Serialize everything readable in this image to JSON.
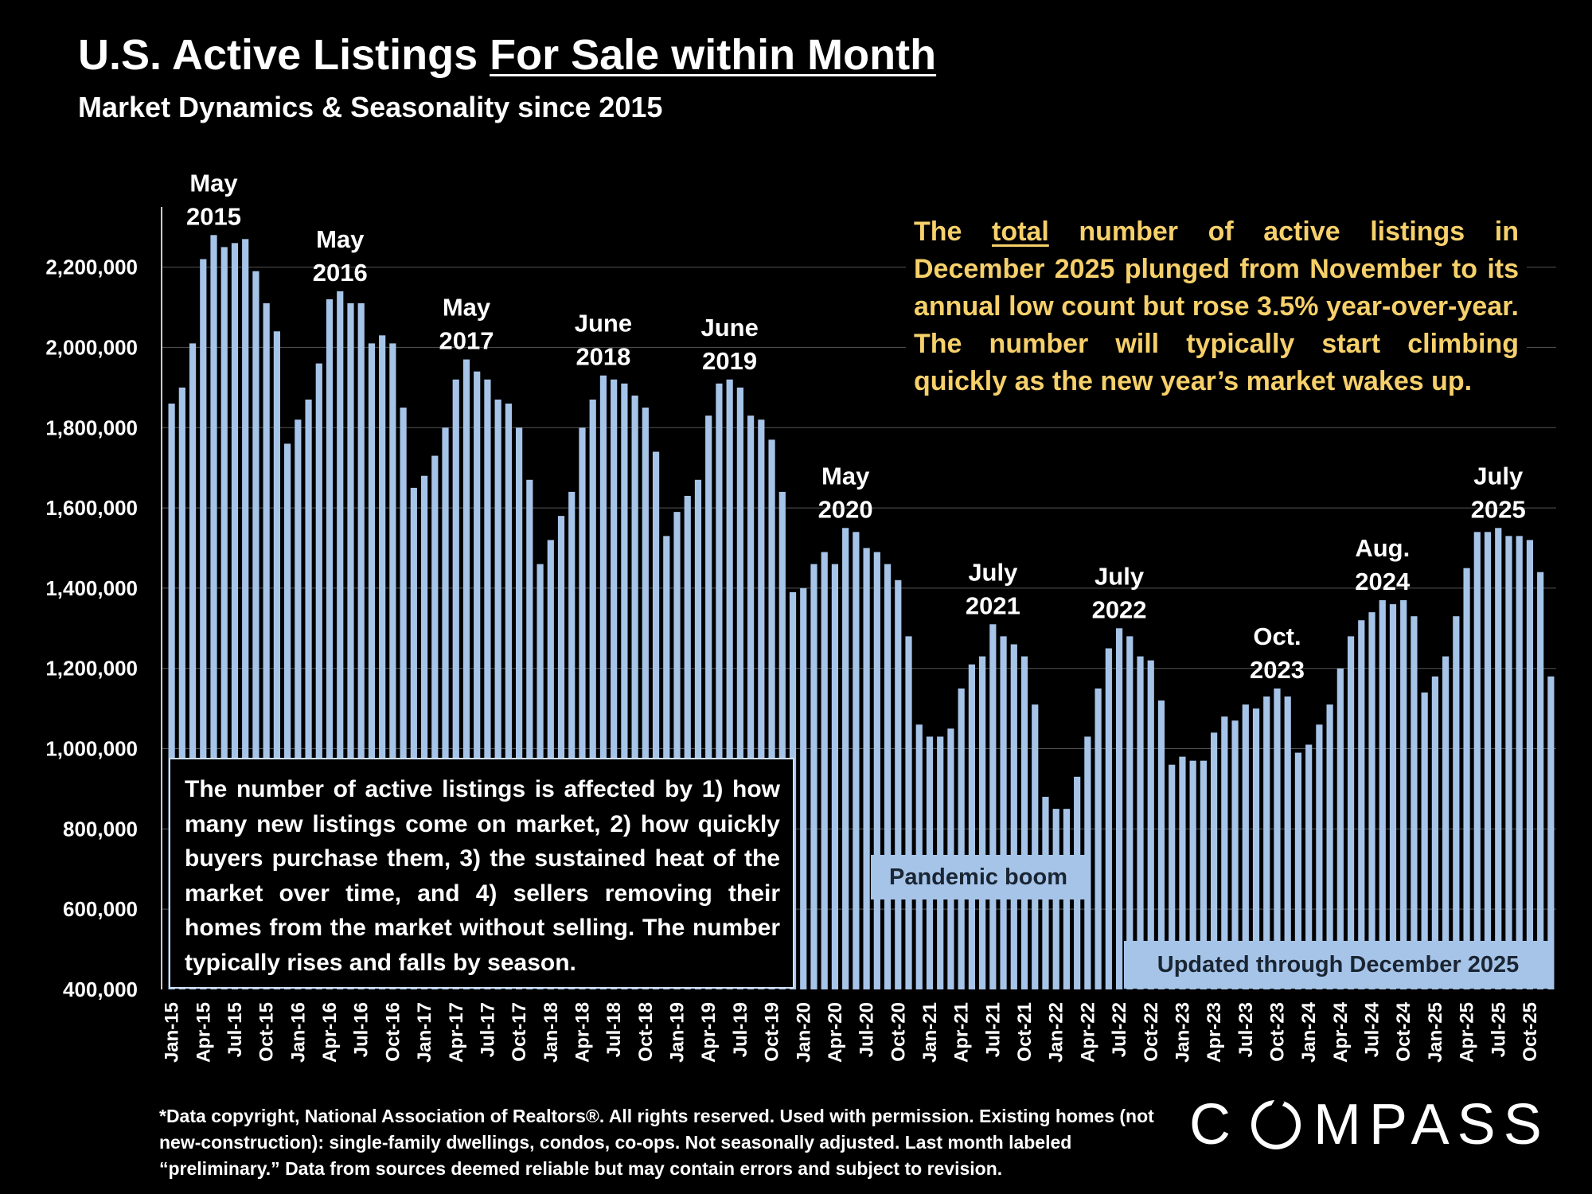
{
  "header": {
    "title_part1": "U.S. Active Listings ",
    "title_part2": "For Sale within Month",
    "subtitle": "Market Dynamics & Seasonality since 2015"
  },
  "insight": {
    "before": "The ",
    "emph": "total",
    "after": " number of active listings in December 2025 plunged from November to its annual low count but rose 3.5% year-over-year. The number will typically start climbing quickly as the new year’s market wakes up."
  },
  "factors_note": "The number of active listings is affected by 1) how many new listings come on market, 2) how quickly buyers purchase them, 3) the sustained heat of the market over time, and 4) sellers removing their homes from the market without selling. The number typically rises and falls by season.",
  "pandemic_label": "Pandemic boom",
  "updated_label": "Updated through December 2025",
  "footnote": "*Data copyright, National Association of Realtors®. All rights reserved. Used with permission. Existing homes (not new-construction): single-family dwellings, condos, co-ops. Not seasonally adjusted. Last month labeled “preliminary.” Data from sources deemed reliable but may contain errors and subject to revision.",
  "logo": {
    "part1": "C",
    "part2": "MPASS"
  },
  "colors": {
    "bar": "#a6c4e8",
    "background": "#000000",
    "insight_text": "#f6d06a",
    "grid": "#555555"
  },
  "chart_data": {
    "type": "bar",
    "ylim": [
      400000,
      2350000
    ],
    "yticks": [
      "400,000",
      "600,000",
      "800,000",
      "1,000,000",
      "1,200,000",
      "1,400,000",
      "1,600,000",
      "1,800,000",
      "2,000,000",
      "2,200,000"
    ],
    "ytick_values": [
      400000,
      600000,
      800000,
      1000000,
      1200000,
      1400000,
      1600000,
      1800000,
      2000000,
      2200000
    ],
    "grid": "horizontal",
    "start": "2015-01",
    "xtick_labels": [
      "Jan-15",
      "Apr-15",
      "Jul-15",
      "Oct-15",
      "Jan-16",
      "Apr-16",
      "Jul-16",
      "Oct-16",
      "Jan-17",
      "Apr-17",
      "Jul-17",
      "Oct-17",
      "Jan-18",
      "Apr-18",
      "Jul-18",
      "Oct-18",
      "Jan-19",
      "Apr-19",
      "Jul-19",
      "Oct-19",
      "Jan-20",
      "Apr-20",
      "Jul-20",
      "Oct-20",
      "Jan-21",
      "Apr-21",
      "Jul-21",
      "Oct-21",
      "Jan-22",
      "Apr-22",
      "Jul-22",
      "Oct-22",
      "Jan-23",
      "Apr-23",
      "Jul-23",
      "Oct-23",
      "Jan-24",
      "Apr-24",
      "Jul-24",
      "Oct-24",
      "Jan-25",
      "Apr-25",
      "Jul-25",
      "Oct-25"
    ],
    "values": [
      1860000,
      1900000,
      2010000,
      2220000,
      2280000,
      2250000,
      2260000,
      2270000,
      2190000,
      2110000,
      2040000,
      1760000,
      1820000,
      1870000,
      1960000,
      2120000,
      2140000,
      2110000,
      2110000,
      2010000,
      2030000,
      2010000,
      1850000,
      1650000,
      1680000,
      1730000,
      1800000,
      1920000,
      1970000,
      1940000,
      1920000,
      1870000,
      1860000,
      1800000,
      1670000,
      1460000,
      1520000,
      1580000,
      1640000,
      1800000,
      1870000,
      1930000,
      1920000,
      1910000,
      1880000,
      1850000,
      1740000,
      1530000,
      1590000,
      1630000,
      1670000,
      1830000,
      1910000,
      1920000,
      1900000,
      1830000,
      1820000,
      1770000,
      1640000,
      1390000,
      1400000,
      1460000,
      1490000,
      1460000,
      1550000,
      1540000,
      1500000,
      1490000,
      1460000,
      1420000,
      1280000,
      1060000,
      1030000,
      1030000,
      1050000,
      1150000,
      1210000,
      1230000,
      1310000,
      1280000,
      1260000,
      1230000,
      1110000,
      880000,
      850000,
      850000,
      930000,
      1030000,
      1150000,
      1250000,
      1300000,
      1280000,
      1230000,
      1220000,
      1120000,
      960000,
      980000,
      970000,
      970000,
      1040000,
      1080000,
      1070000,
      1110000,
      1100000,
      1130000,
      1150000,
      1130000,
      990000,
      1010000,
      1060000,
      1110000,
      1200000,
      1280000,
      1320000,
      1340000,
      1370000,
      1360000,
      1370000,
      1330000,
      1140000,
      1180000,
      1230000,
      1330000,
      1450000,
      1540000,
      1540000,
      1550000,
      1530000,
      1530000,
      1520000,
      1440000,
      1180000
    ],
    "peak_labels": [
      {
        "index": 4,
        "line1": "May",
        "line2": "2015"
      },
      {
        "index": 16,
        "line1": "May",
        "line2": "2016"
      },
      {
        "index": 28,
        "line1": "May",
        "line2": "2017"
      },
      {
        "index": 41,
        "line1": "June",
        "line2": "2018"
      },
      {
        "index": 53,
        "line1": "June",
        "line2": "2019"
      },
      {
        "index": 64,
        "line1": "May",
        "line2": "2020"
      },
      {
        "index": 78,
        "line1": "July",
        "line2": "2021"
      },
      {
        "index": 90,
        "line1": "July",
        "line2": "2022"
      },
      {
        "index": 105,
        "line1": "Oct.",
        "line2": "2023"
      },
      {
        "index": 115,
        "line1": "Aug.",
        "line2": "2024"
      },
      {
        "index": 126,
        "line1": "July",
        "line2": "2025"
      }
    ]
  }
}
